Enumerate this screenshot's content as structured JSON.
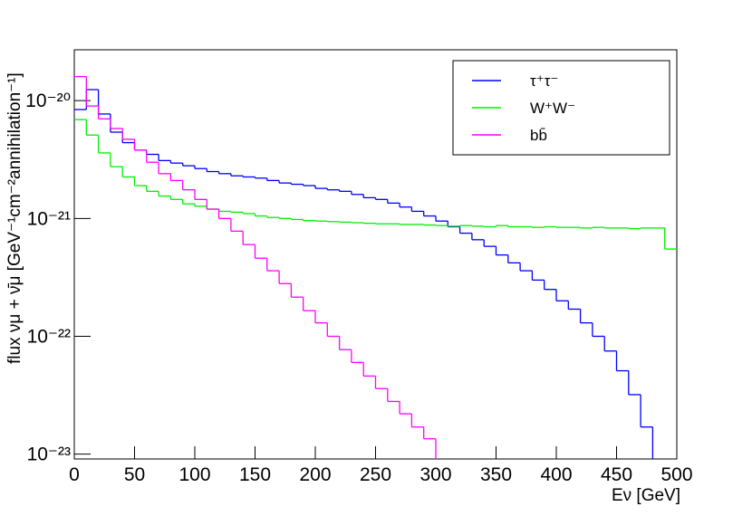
{
  "chart_data": {
    "type": "histogram",
    "log_y": true,
    "xlabel": "Eν [GeV]",
    "ylabel": "flux νμ + ν̄μ [GeV⁻¹cm⁻²annihilation⁻¹]",
    "bins": [
      0,
      10,
      20,
      30,
      40,
      50,
      60,
      70,
      80,
      90,
      100,
      110,
      120,
      130,
      140,
      150,
      160,
      170,
      180,
      190,
      200,
      210,
      220,
      230,
      240,
      250,
      260,
      270,
      280,
      290,
      300,
      310,
      320,
      330,
      340,
      350,
      360,
      370,
      380,
      390,
      400,
      410,
      420,
      430,
      440,
      450,
      460,
      470,
      480,
      490,
      500
    ],
    "xlim": [
      0,
      500
    ],
    "xticks": [
      0,
      50,
      100,
      150,
      200,
      250,
      300,
      350,
      400,
      450,
      500
    ],
    "ylim": [
      9.1e-24,
      2.7e-20
    ],
    "yticks": [
      {
        "value": 1e-23,
        "label": "10⁻²³"
      },
      {
        "value": 1e-22,
        "label": "10⁻²²"
      },
      {
        "value": 1e-21,
        "label": "10⁻²¹"
      },
      {
        "value": 1e-20,
        "label": "10⁻²⁰"
      }
    ],
    "legend": "top-right",
    "series": [
      {
        "name": "τ⁺τ⁻",
        "color": "#0000ff",
        "values": [
          8.4e-21,
          1.24e-20,
          7.7e-21,
          5.4e-21,
          4.4e-21,
          3.8e-21,
          3.5e-21,
          3.1e-21,
          2.95e-21,
          2.8e-21,
          2.65e-21,
          2.5e-21,
          2.4e-21,
          2.3e-21,
          2.25e-21,
          2.2e-21,
          2.1e-21,
          2e-21,
          1.95e-21,
          1.9e-21,
          1.8e-21,
          1.75e-21,
          1.7e-21,
          1.6e-21,
          1.5e-21,
          1.45e-21,
          1.35e-21,
          1.25e-21,
          1.15e-21,
          1.05e-21,
          9.5e-22,
          8.5e-22,
          7.5e-22,
          6.6e-22,
          5.8e-22,
          4.9e-22,
          4.2e-22,
          3.6e-22,
          3e-22,
          2.5e-22,
          2e-22,
          1.7e-22,
          1.3e-22,
          1e-22,
          7.5e-23,
          5.1e-23,
          3.2e-23,
          1.7e-23,
          null,
          null
        ]
      },
      {
        "name": "W⁺W⁻",
        "color": "#00ee00",
        "values": [
          6.9e-21,
          5.1e-21,
          3.6e-21,
          2.75e-21,
          2.25e-21,
          1.9e-21,
          1.7e-21,
          1.55e-21,
          1.45e-21,
          1.33e-21,
          1.27e-21,
          1.2e-21,
          1.15e-21,
          1.13e-21,
          1.1e-21,
          1.05e-21,
          1.02e-21,
          1e-21,
          9.8e-22,
          9.6e-22,
          9.5e-22,
          9.4e-22,
          9.3e-22,
          9.2e-22,
          9.1e-22,
          9e-22,
          9e-22,
          8.9e-22,
          8.9e-22,
          8.8e-22,
          8.7e-22,
          8.6e-22,
          8.7e-22,
          8.6e-22,
          8.5e-22,
          8.7e-22,
          8.5e-22,
          8.5e-22,
          8.4e-22,
          8.5e-22,
          8.4e-22,
          8.4e-22,
          8.3e-22,
          8.4e-22,
          8.3e-22,
          8.3e-22,
          8.2e-22,
          8.3e-22,
          8.3e-22,
          5.5e-22
        ]
      },
      {
        "name": "bb̄",
        "color": "#ff00ff",
        "values": [
          1.6e-20,
          9e-21,
          7e-21,
          5.8e-21,
          4.7e-21,
          3.8e-21,
          3e-21,
          2.4e-21,
          2.1e-21,
          1.75e-21,
          1.45e-21,
          1.2e-21,
          1e-21,
          7.8e-22,
          6e-22,
          4.6e-22,
          3.6e-22,
          2.8e-22,
          2.15e-22,
          1.65e-22,
          1.3e-22,
          1e-22,
          7.7e-23,
          6e-23,
          4.6e-23,
          3.6e-23,
          2.8e-23,
          2.2e-23,
          1.7e-23,
          1.35e-23,
          null,
          null,
          null,
          null,
          null,
          null,
          null,
          null,
          null,
          null,
          null,
          null,
          null,
          null,
          null,
          null,
          null,
          null,
          null,
          null
        ]
      }
    ]
  }
}
